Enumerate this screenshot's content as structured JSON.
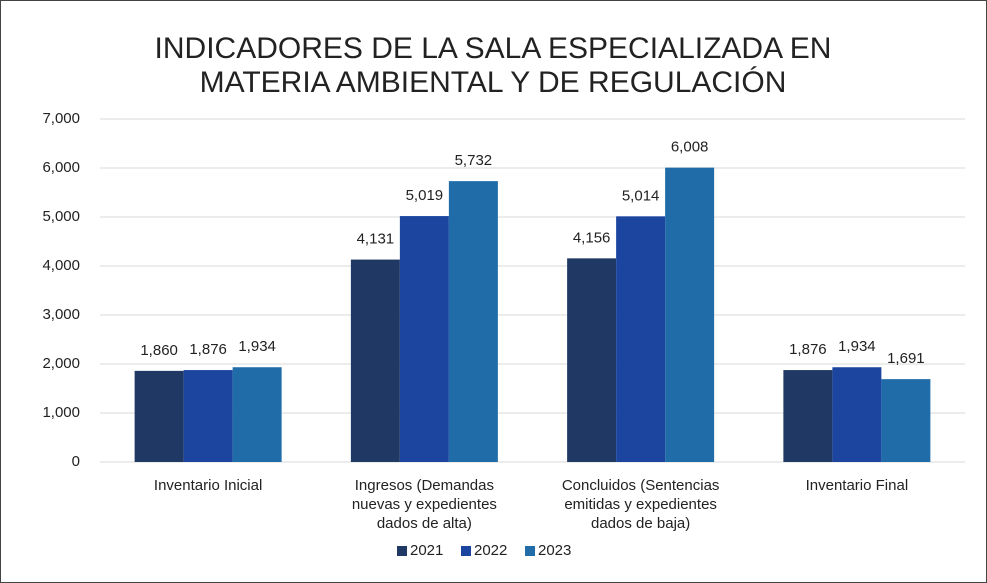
{
  "chart_data": {
    "type": "bar",
    "title": "INDICADORES DE LA SALA ESPECIALIZADA EN MATERIA AMBIENTAL Y DE REGULACIÓN",
    "categories": [
      "Inventario Inicial",
      "Ingresos (Demandas nuevas y expedientes dados de alta)",
      "Concluidos (Sentencias emitidas y expedientes dados de baja)",
      "Inventario Final"
    ],
    "series": [
      {
        "name": "2021",
        "color": "#203864",
        "values": [
          1860,
          4131,
          4156,
          1876
        ],
        "value_labels": [
          "1,860",
          "4,131",
          "4,156",
          "1,876"
        ]
      },
      {
        "name": "2022",
        "color": "#1c45a0",
        "values": [
          1876,
          5019,
          5014,
          1934
        ],
        "value_labels": [
          "1,876",
          "5,019",
          "5,014",
          "1,934"
        ]
      },
      {
        "name": "2023",
        "color": "#1f6ca8",
        "values": [
          1934,
          5732,
          6008,
          1691
        ],
        "value_labels": [
          "1,934",
          "5,732",
          "6,008",
          "1,691"
        ]
      }
    ],
    "ylim": [
      0,
      7000
    ],
    "yticks": [
      0,
      {
        "value": 1000,
        "label": "1,000"
      },
      {
        "value": 2000,
        "label": "2,000"
      },
      {
        "value": 3000,
        "label": "3,000"
      },
      {
        "value": 4000,
        "label": "4,000"
      },
      {
        "value": 5000,
        "label": "5,000"
      },
      {
        "value": 6000,
        "label": "6,000"
      },
      {
        "value": 7000,
        "label": "7,000"
      }
    ],
    "grid": true,
    "legend": "bottom"
  }
}
